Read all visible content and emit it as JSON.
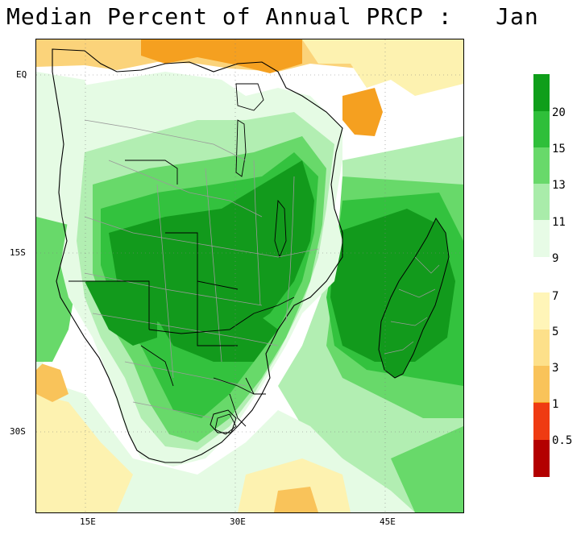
{
  "title": "Median Percent of Annual PRCP :   Jan",
  "y_axis_labels": [
    "EQ",
    "15S",
    "30S"
  ],
  "x_axis_labels": [
    "15E",
    "30E",
    "45E"
  ],
  "legend_wet": {
    "labels": [
      "20",
      "15",
      "13",
      "11",
      "9"
    ],
    "colors": [
      "#0f9e1a",
      "#2fbf3a",
      "#68d96a",
      "#a9ecaa",
      "#e7fbe6"
    ]
  },
  "legend_dry": {
    "labels": [
      "7",
      "5",
      "3",
      "1",
      "0.5"
    ],
    "colors": [
      "#fff5b8",
      "#fde08a",
      "#f9c35a",
      "#f59a1a",
      "#ef3b12",
      "#b30000"
    ]
  },
  "colors": {
    "dark_green": "#129a1c",
    "mid_green": "#33c23e",
    "light_green": "#6edc70",
    "pale_green": "#b2eeb2",
    "very_pale_green": "#e5fbe4",
    "light_yellow": "#fdf2b0",
    "yellow_orange": "#fbd37a",
    "orange": "#f5a020",
    "red": "#e8321a",
    "coast": "#000000",
    "borders": "#9a9a9a"
  }
}
